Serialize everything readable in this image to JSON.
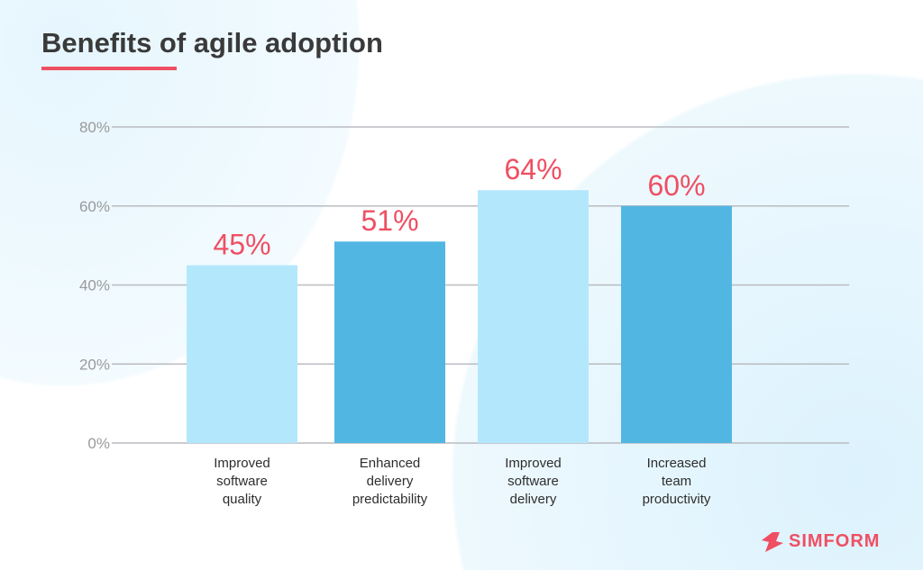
{
  "chart_data": {
    "type": "bar",
    "title": "Benefits of agile adoption",
    "categories": [
      [
        "Improved",
        "software",
        "quality"
      ],
      [
        "Enhanced",
        "delivery",
        "predictability"
      ],
      [
        "Improved",
        "software",
        "delivery"
      ],
      [
        "Increased",
        "team",
        "productivity"
      ]
    ],
    "values": [
      45,
      51,
      64,
      60
    ],
    "data_labels": [
      "45%",
      "51%",
      "64%",
      "60%"
    ],
    "yticks": [
      "0%",
      "20%",
      "40%",
      "60%",
      "80%"
    ],
    "ylim": [
      0,
      80
    ],
    "grid": true,
    "colors": {
      "light_bar": "#b3e8fc",
      "dark_bar": "#52b6e3",
      "label": "#ef4f63",
      "accent": "#ef4f63"
    }
  },
  "logo": {
    "text": "SIMFORM"
  }
}
